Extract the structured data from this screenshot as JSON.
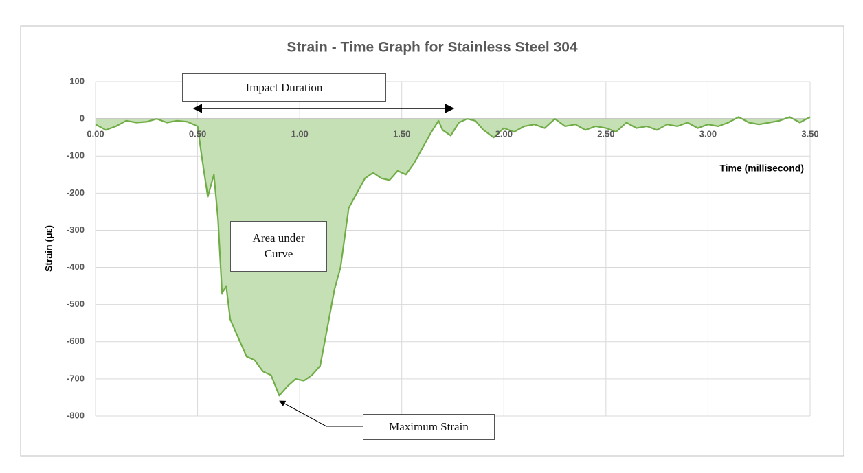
{
  "chart_data": {
    "type": "line",
    "title": "Strain - Time Graph for Stainless Steel 304",
    "xlabel": "Time (millisecond)",
    "ylabel": "Strain (με)",
    "annotations": [
      "Impact Duration",
      "Area under Curve",
      "Maximum Strain"
    ],
    "x": [
      0.0,
      0.05,
      0.1,
      0.15,
      0.2,
      0.25,
      0.3,
      0.35,
      0.4,
      0.45,
      0.5,
      0.52,
      0.55,
      0.58,
      0.6,
      0.62,
      0.64,
      0.66,
      0.7,
      0.74,
      0.78,
      0.82,
      0.86,
      0.9,
      0.94,
      0.98,
      1.02,
      1.06,
      1.1,
      1.14,
      1.17,
      1.2,
      1.24,
      1.28,
      1.32,
      1.36,
      1.4,
      1.44,
      1.48,
      1.52,
      1.56,
      1.6,
      1.64,
      1.68,
      1.7,
      1.74,
      1.78,
      1.82,
      1.86,
      1.9,
      1.95,
      2.0,
      2.05,
      2.1,
      2.15,
      2.2,
      2.25,
      2.3,
      2.35,
      2.4,
      2.45,
      2.5,
      2.55,
      2.6,
      2.65,
      2.7,
      2.75,
      2.8,
      2.85,
      2.9,
      2.95,
      3.0,
      3.05,
      3.1,
      3.15,
      3.2,
      3.25,
      3.3,
      3.35,
      3.4,
      3.45,
      3.5
    ],
    "series": [
      {
        "name": "Strain",
        "color": "#70ad47",
        "fill": "#c5e0b4",
        "values": [
          -15,
          -30,
          -20,
          -5,
          -10,
          -8,
          0,
          -10,
          -5,
          -8,
          -20,
          -100,
          -210,
          -150,
          -270,
          -470,
          -450,
          -540,
          -590,
          -640,
          -650,
          -680,
          -690,
          -745,
          -720,
          -700,
          -705,
          -690,
          -665,
          -550,
          -460,
          -400,
          -240,
          -200,
          -160,
          -145,
          -160,
          -165,
          -140,
          -150,
          -120,
          -80,
          -40,
          -5,
          -30,
          -45,
          -10,
          0,
          -5,
          -30,
          -50,
          -25,
          -35,
          -20,
          -15,
          -25,
          0,
          -20,
          -15,
          -30,
          -20,
          -25,
          -35,
          -10,
          -25,
          -20,
          -30,
          -15,
          -20,
          -10,
          -25,
          -15,
          -20,
          -10,
          5,
          -10,
          -15,
          -10,
          -5,
          5,
          -10,
          5
        ]
      }
    ],
    "xlim": [
      0,
      3.5
    ],
    "xticks": [
      {
        "value": 0,
        "label": "0.00"
      },
      {
        "value": 0.5,
        "label": "0.50"
      },
      {
        "value": 1,
        "label": "1.00"
      },
      {
        "value": 1.5,
        "label": "1.50"
      },
      {
        "value": 2,
        "label": "2.00"
      },
      {
        "value": 2.5,
        "label": "2.50"
      },
      {
        "value": 3,
        "label": "3.00"
      },
      {
        "value": 3.5,
        "label": "3.50"
      }
    ],
    "ylim": [
      -800,
      100
    ],
    "yticks": [
      -800,
      -700,
      -600,
      -500,
      -400,
      -300,
      -200,
      -100,
      0,
      100
    ],
    "grid": true
  }
}
